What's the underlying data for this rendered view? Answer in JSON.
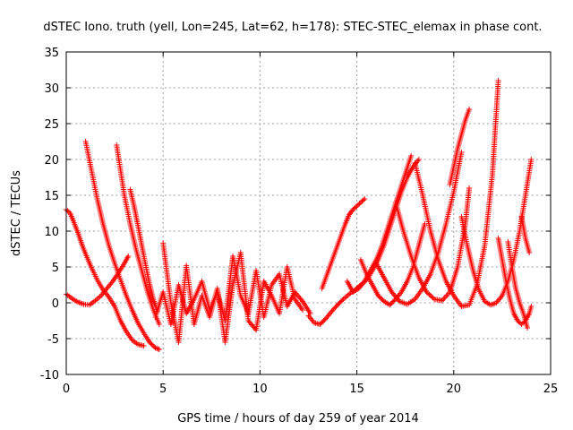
{
  "chart_data": {
    "type": "scatter",
    "title": "dSTEC Iono. truth (yell, Lon=245, Lat=62, h=178): STEC-STEC_elemax in phase cont.",
    "xlabel": "GPS time / hours of day 259 of year 2014",
    "ylabel": "dSTEC  / TECUs",
    "xlim": [
      0,
      25
    ],
    "ylim": [
      -10,
      35
    ],
    "xticks": [
      0,
      5,
      10,
      15,
      20,
      25
    ],
    "yticks": [
      -10,
      -5,
      0,
      5,
      10,
      15,
      20,
      25,
      30,
      35
    ],
    "grid": true,
    "legend": "none",
    "marker": "+",
    "color": "#ff0000",
    "series": [
      {
        "x": [
          0.0,
          0.2,
          0.4,
          0.6,
          0.8,
          1.0,
          1.3,
          1.6,
          1.9,
          2.2,
          2.5,
          2.8,
          3.1,
          3.4,
          3.7,
          4.0
        ],
        "y": [
          13.0,
          12.5,
          11.2,
          9.8,
          8.2,
          6.8,
          4.9,
          3.2,
          1.8,
          0.8,
          -0.5,
          -2.5,
          -4.0,
          -5.2,
          -5.8,
          -6.0
        ]
      },
      {
        "x": [
          0.0,
          0.3,
          0.6,
          0.9,
          1.2,
          1.5,
          1.8,
          2.1,
          2.4,
          2.7,
          3.0,
          3.2
        ],
        "y": [
          1.2,
          0.6,
          0.1,
          -0.2,
          -0.3,
          0.3,
          1.0,
          2.0,
          3.0,
          4.2,
          5.5,
          6.5
        ]
      },
      {
        "x": [
          1.0,
          1.3,
          1.6,
          1.9,
          2.2,
          2.5,
          2.8,
          3.1,
          3.4,
          3.7,
          4.0,
          4.3,
          4.6,
          4.8
        ],
        "y": [
          22.5,
          18.5,
          14.5,
          11.0,
          8.0,
          5.5,
          3.2,
          1.0,
          -1.0,
          -2.8,
          -4.2,
          -5.5,
          -6.3,
          -6.5
        ]
      },
      {
        "x": [
          2.6,
          2.8,
          3.0,
          3.3,
          3.6,
          3.9,
          4.2,
          4.5,
          4.8
        ],
        "y": [
          22.0,
          18.5,
          15.0,
          11.0,
          7.5,
          4.5,
          1.5,
          -1.0,
          -3.0
        ]
      },
      {
        "x": [
          3.3,
          3.5,
          3.7,
          3.9,
          4.1,
          4.3,
          4.5,
          4.7
        ],
        "y": [
          15.8,
          13.5,
          10.8,
          8.0,
          5.2,
          2.6,
          0.4,
          -1.2
        ]
      },
      {
        "x": [
          4.6,
          5.0,
          5.4,
          5.8,
          6.2,
          6.6,
          7.0,
          7.4,
          7.8,
          8.2,
          8.6,
          9.0,
          9.4,
          9.8,
          10.2,
          10.6,
          11.0,
          11.4,
          11.8,
          12.2,
          12.6
        ],
        "y": [
          -2.0,
          1.5,
          -3.0,
          2.5,
          -1.5,
          0.5,
          3.0,
          -1.0,
          1.5,
          -2.5,
          6.5,
          1.0,
          -1.5,
          4.5,
          -2.0,
          2.5,
          4.0,
          -0.5,
          1.5,
          0.2,
          -1.5
        ]
      },
      {
        "x": [
          5.0,
          5.4,
          5.8,
          6.2,
          6.6,
          7.0,
          7.4,
          7.8,
          8.2,
          8.6,
          9.0,
          9.4,
          9.8,
          10.2,
          10.6,
          11.0,
          11.4,
          11.8,
          12.2
        ],
        "y": [
          8.3,
          0.0,
          -5.5,
          5.2,
          -3.0,
          1.0,
          -2.0,
          2.0,
          -5.5,
          2.5,
          7.0,
          -2.5,
          -3.8,
          3.0,
          1.0,
          -1.5,
          5.0,
          0.5,
          -1.0
        ]
      },
      {
        "x": [
          12.5,
          12.8,
          13.1,
          13.4,
          13.7,
          14.0,
          14.3,
          14.6,
          14.9,
          15.2,
          15.5,
          15.8,
          16.1,
          16.4,
          16.7,
          17.0,
          17.3,
          17.6,
          17.9,
          18.2
        ],
        "y": [
          -1.8,
          -2.8,
          -3.0,
          -2.2,
          -1.2,
          -0.3,
          0.5,
          1.2,
          1.8,
          2.5,
          3.2,
          4.5,
          6.0,
          8.0,
          10.5,
          13.0,
          15.5,
          17.5,
          19.0,
          20.0
        ]
      },
      {
        "x": [
          13.2,
          13.4,
          13.6,
          13.8,
          14.0,
          14.2,
          14.4,
          14.6,
          14.8,
          15.0,
          15.2,
          15.4
        ],
        "y": [
          2.0,
          3.5,
          5.0,
          6.5,
          8.0,
          9.5,
          11.0,
          12.3,
          13.0,
          13.5,
          14.0,
          14.5
        ]
      },
      {
        "x": [
          14.5,
          14.8,
          15.1,
          15.4,
          15.7,
          16.0,
          16.3,
          16.6,
          16.9,
          17.2,
          17.5,
          17.8
        ],
        "y": [
          3.0,
          1.5,
          2.0,
          3.0,
          4.5,
          6.0,
          8.0,
          10.5,
          13.0,
          15.5,
          18.0,
          20.5
        ]
      },
      {
        "x": [
          15.2,
          15.5,
          15.8,
          16.1,
          16.4,
          16.7,
          17.0,
          17.3,
          17.6,
          17.9,
          18.2,
          18.5
        ],
        "y": [
          6.0,
          4.0,
          2.5,
          1.0,
          0.2,
          -0.3,
          0.5,
          1.5,
          3.0,
          5.0,
          8.0,
          11.0
        ]
      },
      {
        "x": [
          16.0,
          16.4,
          16.8,
          17.2,
          17.6,
          18.0,
          18.4,
          18.8,
          19.2,
          19.6,
          20.0,
          20.4
        ],
        "y": [
          5.5,
          3.5,
          1.5,
          0.2,
          -0.2,
          0.5,
          2.0,
          4.0,
          7.0,
          11.0,
          15.5,
          21.0
        ]
      },
      {
        "x": [
          17.0,
          17.4,
          17.8,
          18.2,
          18.6,
          19.0,
          19.4,
          19.8,
          20.2,
          20.6,
          20.8
        ],
        "y": [
          14.0,
          10.0,
          6.5,
          3.5,
          1.5,
          0.5,
          0.3,
          1.5,
          5.0,
          11.0,
          16.0
        ]
      },
      {
        "x": [
          18.0,
          18.4,
          18.8,
          19.2,
          19.6,
          20.0,
          20.4,
          20.8,
          21.2,
          21.6,
          22.0,
          22.3
        ],
        "y": [
          19.5,
          15.0,
          10.0,
          6.0,
          3.0,
          1.0,
          -0.5,
          -0.3,
          2.5,
          8.0,
          18.0,
          31.0
        ]
      },
      {
        "x": [
          19.8,
          20.0,
          20.2,
          20.4,
          20.6,
          20.8
        ],
        "y": [
          16.5,
          19.0,
          21.5,
          23.5,
          25.5,
          27.0
        ]
      },
      {
        "x": [
          20.4,
          20.7,
          21.0,
          21.3,
          21.6,
          21.9,
          22.2,
          22.5,
          22.8,
          23.1,
          23.4,
          23.7,
          24.0
        ],
        "y": [
          12.0,
          8.0,
          4.5,
          1.8,
          0.2,
          -0.3,
          0.0,
          1.0,
          3.0,
          6.0,
          10.0,
          15.0,
          20.0
        ]
      },
      {
        "x": [
          22.3,
          22.5,
          22.7,
          22.9,
          23.1,
          23.3,
          23.5,
          23.7,
          23.9,
          24.0
        ],
        "y": [
          9.0,
          6.0,
          3.0,
          0.5,
          -1.5,
          -2.5,
          -3.0,
          -2.5,
          -1.5,
          -0.5
        ]
      },
      {
        "x": [
          22.8,
          23.0,
          23.2,
          23.4,
          23.6,
          23.8
        ],
        "y": [
          8.5,
          5.0,
          2.0,
          0.0,
          -1.5,
          -3.5
        ]
      },
      {
        "x": [
          23.5,
          23.7,
          23.9
        ],
        "y": [
          12.0,
          9.0,
          7.0
        ]
      }
    ]
  }
}
